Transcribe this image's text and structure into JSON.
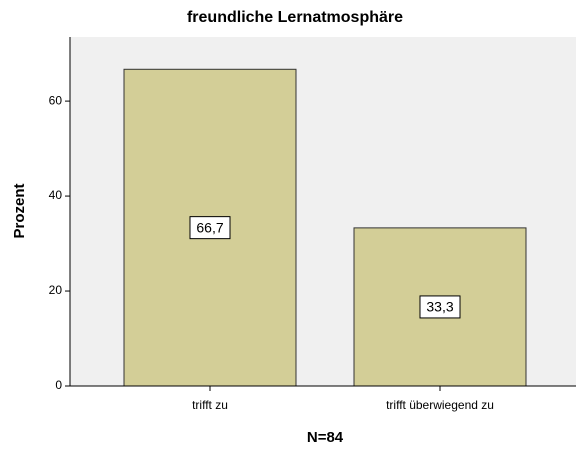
{
  "chart_data": {
    "type": "bar",
    "title": "freundliche Lernatmosphäre",
    "categories": [
      "trifft zu",
      "trifft überwiegend zu"
    ],
    "values": [
      66.7,
      33.3
    ],
    "value_labels": [
      "66,7",
      "33,3"
    ],
    "color": "#d3ce97",
    "xlabel": "N=84",
    "ylabel": "Prozent",
    "ylim": [
      0,
      73.5
    ],
    "yticks": [
      0,
      20,
      40,
      60
    ]
  }
}
